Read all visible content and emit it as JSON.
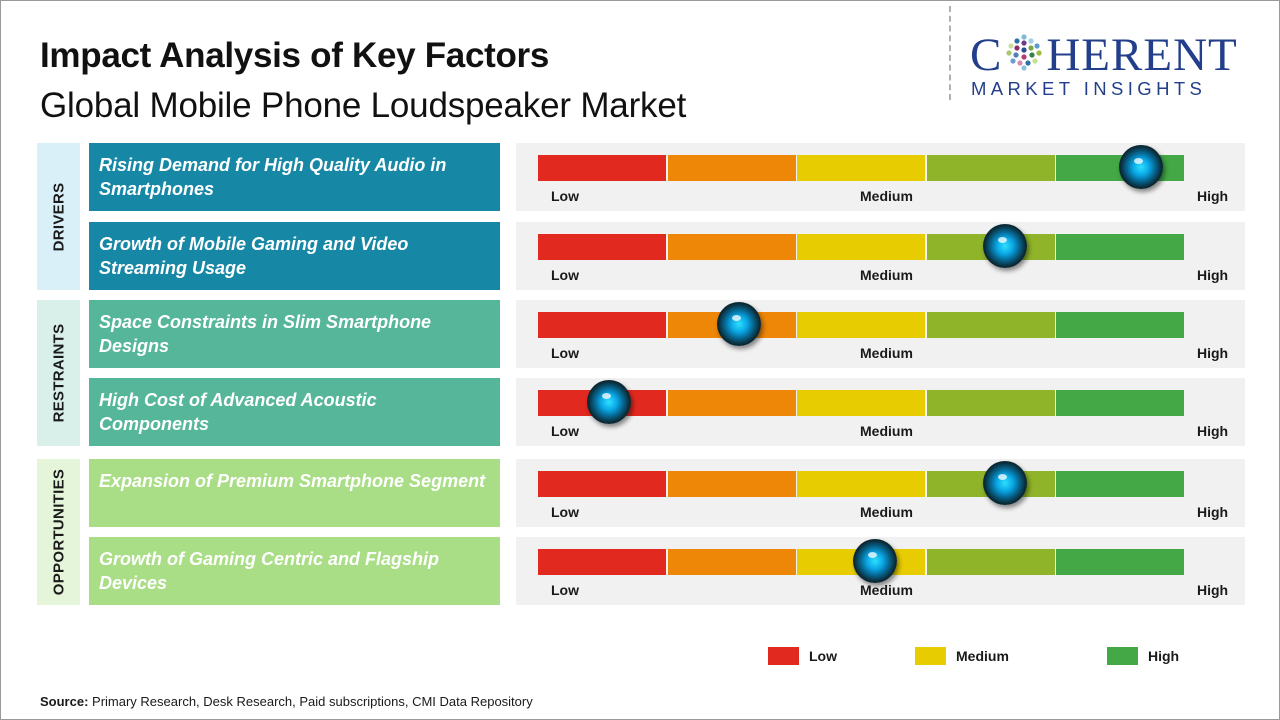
{
  "title": "Impact Analysis of Key Factors",
  "subtitle": "Global Mobile Phone Loudspeaker Market",
  "logo": {
    "main": "COHERENT",
    "main_left": "C",
    "main_right": "HERENT",
    "sub": "MARKET INSIGHTS"
  },
  "colors": {
    "low": "#e2291f",
    "low_mid": "#ee8607",
    "medium": "#e8cc02",
    "mid_high": "#8fb429",
    "high": "#43a845",
    "drivers": "#1787a6",
    "drivers_cat": "#d9f0f8",
    "restraints": "#55b69a",
    "restraints_cat": "#d9f0ea",
    "opportunities": "#a9dd86",
    "opportunities_cat": "#e4f5da",
    "brand": "#233f8b",
    "knob": "#0aa7e6"
  },
  "chart_data": {
    "type": "gauge",
    "scale": [
      "Low",
      "Medium",
      "High"
    ],
    "range": [
      0,
      1
    ],
    "segments": 5,
    "categories": [
      {
        "name": "DRIVERS",
        "factors": [
          {
            "label": "Rising Demand for High Quality Audio in Smartphones",
            "impact": 0.93
          },
          {
            "label": "Growth of Mobile Gaming and Video Streaming Usage",
            "impact": 0.72
          }
        ]
      },
      {
        "name": "RESTRAINTS",
        "factors": [
          {
            "label": "Space Constraints in Slim Smartphone Designs",
            "impact": 0.31
          },
          {
            "label": "High Cost of Advanced Acoustic Components",
            "impact": 0.11
          }
        ]
      },
      {
        "name": "OPPORTUNITIES",
        "factors": [
          {
            "label": "Expansion of Premium Smartphone Segment",
            "impact": 0.72
          },
          {
            "label": "Growth of Gaming Centric and Flagship Devices",
            "impact": 0.52
          }
        ]
      }
    ],
    "legend": [
      "Low",
      "Medium",
      "High"
    ]
  },
  "source": {
    "label": "Source:",
    "text": " Primary Research, Desk Research, Paid subscriptions, CMI Data Repository"
  }
}
